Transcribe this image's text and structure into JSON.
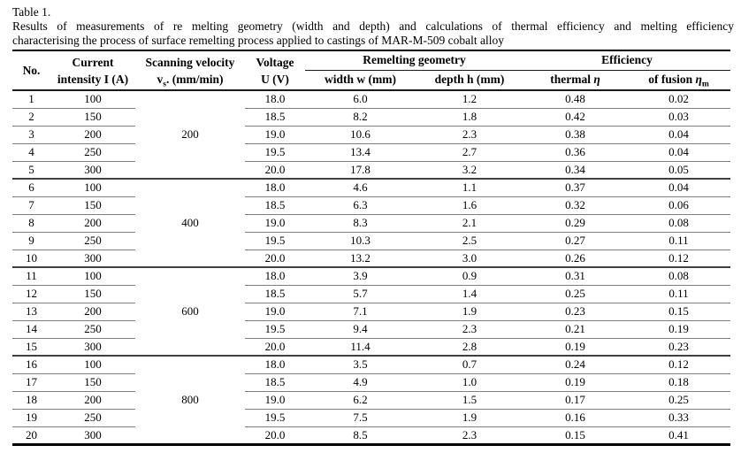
{
  "page": {
    "background": "#ffffff",
    "text_color": "#000000"
  },
  "caption": {
    "title": "Table 1.",
    "line1": "Results of measurements of re melting geometry (width and depth) and calculations of thermal efficiency and melting efficiency",
    "line2": "characterising the process of surface remelting process applied to castings of MAR-M-509 cobalt alloy"
  },
  "table": {
    "header": {
      "no": "No.",
      "current": {
        "line1": "Current",
        "line2": "intensity I (A)"
      },
      "velocity": {
        "line1": "Scanning velocity",
        "symbol": "v",
        "subscript": "s",
        "rest": ". (mm/min)"
      },
      "voltage": {
        "line1": "Voltage",
        "line2": "U (V)"
      },
      "geometry_group": "Remelting geometry",
      "efficiency_group": "Efficiency",
      "width_col": "width w (mm)",
      "depth_col": "depth h (mm)",
      "thermal": {
        "label": "thermal ",
        "symbol": "η"
      },
      "fusion": {
        "label": "of fusion ",
        "symbol": "η",
        "subscript": "m"
      }
    },
    "groups": [
      {
        "velocity": "200",
        "rows": [
          {
            "no": "1",
            "current": "100",
            "voltage": "18.0",
            "width": "6.0",
            "depth": "1.2",
            "thermal": "0.48",
            "fusion": "0.02"
          },
          {
            "no": "2",
            "current": "150",
            "voltage": "18.5",
            "width": "8.2",
            "depth": "1.8",
            "thermal": "0.42",
            "fusion": "0.03"
          },
          {
            "no": "3",
            "current": "200",
            "voltage": "19.0",
            "width": "10.6",
            "depth": "2.3",
            "thermal": "0.38",
            "fusion": "0.04"
          },
          {
            "no": "4",
            "current": "250",
            "voltage": "19.5",
            "width": "13.4",
            "depth": "2.7",
            "thermal": "0.36",
            "fusion": "0.04"
          },
          {
            "no": "5",
            "current": "300",
            "voltage": "20.0",
            "width": "17.8",
            "depth": "3.2",
            "thermal": "0.34",
            "fusion": "0.05"
          }
        ]
      },
      {
        "velocity": "400",
        "rows": [
          {
            "no": "6",
            "current": "100",
            "voltage": "18.0",
            "width": "4.6",
            "depth": "1.1",
            "thermal": "0.37",
            "fusion": "0.04"
          },
          {
            "no": "7",
            "current": "150",
            "voltage": "18.5",
            "width": "6.3",
            "depth": "1.6",
            "thermal": "0.32",
            "fusion": "0.06"
          },
          {
            "no": "8",
            "current": "200",
            "voltage": "19.0",
            "width": "8.3",
            "depth": "2.1",
            "thermal": "0.29",
            "fusion": "0.08"
          },
          {
            "no": "9",
            "current": "250",
            "voltage": "19.5",
            "width": "10.3",
            "depth": "2.5",
            "thermal": "0.27",
            "fusion": "0.11"
          },
          {
            "no": "10",
            "current": "300",
            "voltage": "20.0",
            "width": "13.2",
            "depth": "3.0",
            "thermal": "0.26",
            "fusion": "0.12"
          }
        ]
      },
      {
        "velocity": "600",
        "rows": [
          {
            "no": "11",
            "current": "100",
            "voltage": "18.0",
            "width": "3.9",
            "depth": "0.9",
            "thermal": "0.31",
            "fusion": "0.08"
          },
          {
            "no": "12",
            "current": "150",
            "voltage": "18.5",
            "width": "5.7",
            "depth": "1.4",
            "thermal": "0.25",
            "fusion": "0.11"
          },
          {
            "no": "13",
            "current": "200",
            "voltage": "19.0",
            "width": "7.1",
            "depth": "1.9",
            "thermal": "0.23",
            "fusion": "0.15"
          },
          {
            "no": "14",
            "current": "250",
            "voltage": "19.5",
            "width": "9.4",
            "depth": "2.3",
            "thermal": "0.21",
            "fusion": "0.19"
          },
          {
            "no": "15",
            "current": "300",
            "voltage": "20.0",
            "width": "11.4",
            "depth": "2.8",
            "thermal": "0.19",
            "fusion": "0.23"
          }
        ]
      },
      {
        "velocity": "800",
        "rows": [
          {
            "no": "16",
            "current": "100",
            "voltage": "18.0",
            "width": "3.5",
            "depth": "0.7",
            "thermal": "0.24",
            "fusion": "0.12"
          },
          {
            "no": "17",
            "current": "150",
            "voltage": "18.5",
            "width": "4.9",
            "depth": "1.0",
            "thermal": "0.19",
            "fusion": "0.18"
          },
          {
            "no": "18",
            "current": "200",
            "voltage": "19.0",
            "width": "6.2",
            "depth": "1.5",
            "thermal": "0.17",
            "fusion": "0.25"
          },
          {
            "no": "19",
            "current": "250",
            "voltage": "19.5",
            "width": "7.5",
            "depth": "1.9",
            "thermal": "0.16",
            "fusion": "0.33"
          },
          {
            "no": "20",
            "current": "300",
            "voltage": "20.0",
            "width": "8.5",
            "depth": "2.3",
            "thermal": "0.15",
            "fusion": "0.41"
          }
        ]
      }
    ]
  },
  "lines": {
    "strong": "#000000",
    "group_separator": "#3f3f3f",
    "row_separator": "#7e7e7e"
  }
}
